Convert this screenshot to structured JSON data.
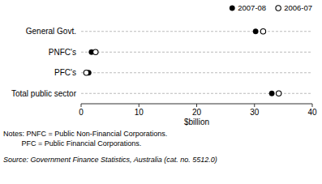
{
  "chart_data": {
    "type": "dot",
    "orientation": "horizontal",
    "categories": [
      "General Govt.",
      "PNFC's",
      "PFC's",
      "Total public sector"
    ],
    "series": [
      {
        "name": "2007-08",
        "color": "#000000",
        "marker": "filled_circle",
        "values": [
          30.2,
          1.8,
          1.3,
          33.0
        ]
      },
      {
        "name": "2006-07",
        "color": "#000000",
        "marker": "open_circle",
        "values": [
          31.5,
          2.5,
          0.9,
          34.2
        ]
      }
    ],
    "xlabel": "$billion",
    "xlim": [
      0,
      40
    ],
    "xticks": [
      0,
      10,
      20,
      30,
      40
    ],
    "grid": true,
    "grid_color": "#aaaaaa",
    "line_style": "dashed",
    "legend": "upper right",
    "annotations": [
      "Notes: PNFC = Public Non-Financial Corporations.",
      "         PFC = Public Financial Corporations."
    ],
    "source": "Source: Government Finance Statistics, Australia (cat. no. 5512.0)"
  }
}
